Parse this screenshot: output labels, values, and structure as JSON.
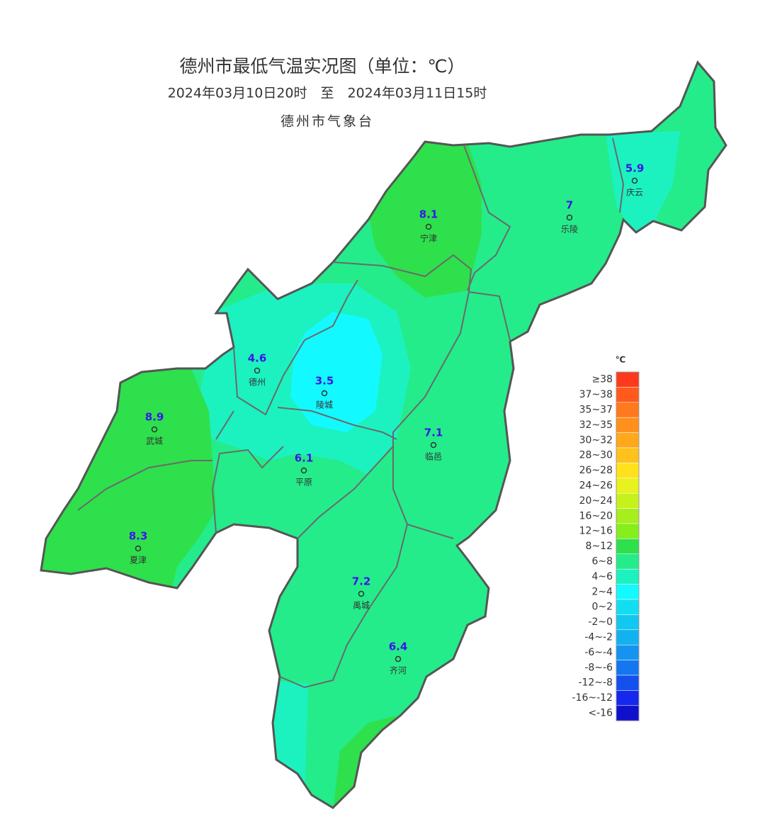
{
  "header": {
    "title": "德州市最低气温实况图（单位：℃）",
    "period": "2024年03月10日20时　至　2024年03月11日15时",
    "agency": "德州市气象台"
  },
  "stations": [
    {
      "name": "庆云",
      "value": 5.9
    },
    {
      "name": "乐陵",
      "value": 7
    },
    {
      "name": "宁津",
      "value": 8.1
    },
    {
      "name": "德州",
      "value": 4.6
    },
    {
      "name": "陵城",
      "value": 3.5
    },
    {
      "name": "武城",
      "value": 8.9
    },
    {
      "name": "临邑",
      "value": 7.1
    },
    {
      "name": "平原",
      "value": 6.1
    },
    {
      "name": "夏津",
      "value": 8.3
    },
    {
      "name": "禹城",
      "value": 7.2
    },
    {
      "name": "齐河",
      "value": 6.4
    }
  ],
  "legend": {
    "unit": "℃",
    "items": [
      {
        "label": "≥38",
        "color": "#ff3a1c"
      },
      {
        "label": "37~38",
        "color": "#ff5a1c"
      },
      {
        "label": "35~37",
        "color": "#ff7a1c"
      },
      {
        "label": "32~35",
        "color": "#ff901c"
      },
      {
        "label": "30~32",
        "color": "#ffa81c"
      },
      {
        "label": "28~30",
        "color": "#ffc21c"
      },
      {
        "label": "26~28",
        "color": "#ffe21c"
      },
      {
        "label": "24~26",
        "color": "#e8f21c"
      },
      {
        "label": "20~24",
        "color": "#c6f21c"
      },
      {
        "label": "16~20",
        "color": "#a6ee1c"
      },
      {
        "label": "12~16",
        "color": "#86ee1c"
      },
      {
        "label": "8~12",
        "color": "#2ee04c"
      },
      {
        "label": "6~8",
        "color": "#24ec8a"
      },
      {
        "label": "4~6",
        "color": "#1cf2c0"
      },
      {
        "label": "2~4",
        "color": "#12faff"
      },
      {
        "label": "0~2",
        "color": "#12def2"
      },
      {
        "label": "-2~0",
        "color": "#12c8f0"
      },
      {
        "label": "-4~-2",
        "color": "#12b2f0"
      },
      {
        "label": "-6~-4",
        "color": "#1494f0"
      },
      {
        "label": "-8~-6",
        "color": "#1476f0"
      },
      {
        "label": "-12~-8",
        "color": "#1450ee"
      },
      {
        "label": "-16~-12",
        "color": "#1428ee"
      },
      {
        "label": "<-16",
        "color": "#1010cc"
      }
    ]
  }
}
